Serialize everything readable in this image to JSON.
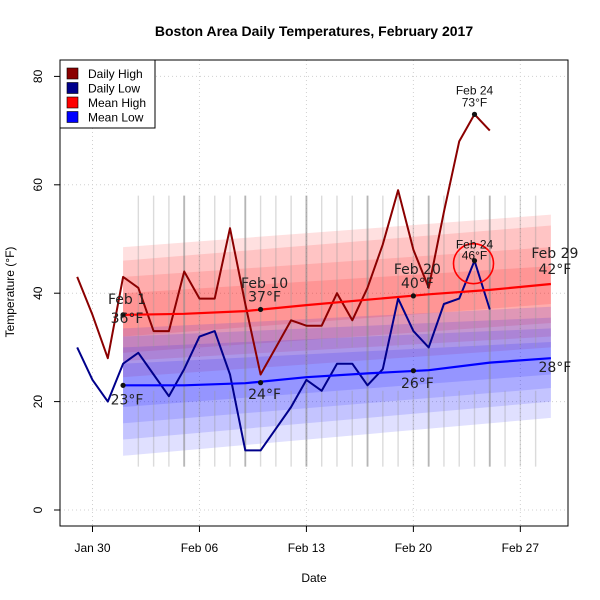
{
  "chart_data": {
    "type": "line",
    "title": "Boston Area Daily Temperatures, February 2017",
    "xlabel": "Date",
    "ylabel": "Temperature (°F)",
    "ylim": [
      0,
      80
    ],
    "xlim": [
      "2017-01-28",
      "2017-03-01"
    ],
    "x_ticks": [
      {
        "date": "2017-01-30",
        "label": "Jan 30"
      },
      {
        "date": "2017-02-06",
        "label": "Feb 06"
      },
      {
        "date": "2017-02-13",
        "label": "Feb 13"
      },
      {
        "date": "2017-02-20",
        "label": "Feb 20"
      },
      {
        "date": "2017-02-27",
        "label": "Feb 27"
      }
    ],
    "y_ticks": [
      0,
      20,
      40,
      60,
      80
    ],
    "grid": true,
    "legend_position": "top-left",
    "legend": [
      {
        "label": "Daily High",
        "color": "#8b0000"
      },
      {
        "label": "Daily Low",
        "color": "#00008b"
      },
      {
        "label": "Mean High",
        "color": "#ff0000"
      },
      {
        "label": "Mean Low",
        "color": "#0000ff"
      }
    ],
    "series": [
      {
        "name": "Daily High",
        "color": "#8b0000",
        "points": [
          [
            "2017-01-29",
            43
          ],
          [
            "2017-01-30",
            36
          ],
          [
            "2017-01-31",
            28
          ],
          [
            "2017-02-01",
            43
          ],
          [
            "2017-02-02",
            41
          ],
          [
            "2017-02-03",
            33
          ],
          [
            "2017-02-04",
            33
          ],
          [
            "2017-02-05",
            44
          ],
          [
            "2017-02-06",
            39
          ],
          [
            "2017-02-07",
            39
          ],
          [
            "2017-02-08",
            52
          ],
          [
            "2017-02-09",
            38
          ],
          [
            "2017-02-10",
            25
          ],
          [
            "2017-02-11",
            30
          ],
          [
            "2017-02-12",
            35
          ],
          [
            "2017-02-13",
            34
          ],
          [
            "2017-02-14",
            34
          ],
          [
            "2017-02-15",
            40
          ],
          [
            "2017-02-16",
            35
          ],
          [
            "2017-02-17",
            41
          ],
          [
            "2017-02-18",
            49
          ],
          [
            "2017-02-19",
            59
          ],
          [
            "2017-02-20",
            48
          ],
          [
            "2017-02-21",
            41
          ],
          [
            "2017-02-22",
            55
          ],
          [
            "2017-02-23",
            68
          ],
          [
            "2017-02-24",
            73
          ],
          [
            "2017-02-25",
            70
          ]
        ]
      },
      {
        "name": "Daily Low",
        "color": "#00008b",
        "points": [
          [
            "2017-01-29",
            30
          ],
          [
            "2017-01-30",
            24
          ],
          [
            "2017-01-31",
            20
          ],
          [
            "2017-02-01",
            27
          ],
          [
            "2017-02-02",
            29
          ],
          [
            "2017-02-03",
            25
          ],
          [
            "2017-02-04",
            21
          ],
          [
            "2017-02-05",
            26
          ],
          [
            "2017-02-06",
            32
          ],
          [
            "2017-02-07",
            33
          ],
          [
            "2017-02-08",
            25
          ],
          [
            "2017-02-09",
            11
          ],
          [
            "2017-02-10",
            11
          ],
          [
            "2017-02-11",
            15
          ],
          [
            "2017-02-12",
            19
          ],
          [
            "2017-02-13",
            24
          ],
          [
            "2017-02-14",
            22
          ],
          [
            "2017-02-15",
            27
          ],
          [
            "2017-02-16",
            27
          ],
          [
            "2017-02-17",
            23
          ],
          [
            "2017-02-18",
            26
          ],
          [
            "2017-02-19",
            39
          ],
          [
            "2017-02-20",
            33
          ],
          [
            "2017-02-21",
            30
          ],
          [
            "2017-02-22",
            38
          ],
          [
            "2017-02-23",
            39
          ],
          [
            "2017-02-24",
            46
          ],
          [
            "2017-02-25",
            37
          ]
        ]
      },
      {
        "name": "Mean High",
        "color": "#ff0000",
        "points": [
          [
            "2017-02-01",
            36
          ],
          [
            "2017-02-05",
            36.2
          ],
          [
            "2017-02-09",
            36.7
          ],
          [
            "2017-02-13",
            37.8
          ],
          [
            "2017-02-17",
            38.8
          ],
          [
            "2017-02-21",
            39.8
          ],
          [
            "2017-02-25",
            40.6
          ],
          [
            "2017-02-29",
            41.7
          ]
        ]
      },
      {
        "name": "Mean Low",
        "color": "#0000ff",
        "points": [
          [
            "2017-02-01",
            23
          ],
          [
            "2017-02-05",
            23
          ],
          [
            "2017-02-09",
            23.4
          ],
          [
            "2017-02-13",
            24.5
          ],
          [
            "2017-02-17",
            25.2
          ],
          [
            "2017-02-21",
            25.8
          ],
          [
            "2017-02-25",
            27.2
          ],
          [
            "2017-02-29",
            28
          ]
        ]
      }
    ],
    "bands": [
      {
        "name": "Mean High",
        "color": "#ff0000",
        "layers": [
          {
            "start": [
              48.5,
              24.5
            ],
            "end": [
              54.5,
              30
            ]
          },
          {
            "start": [
              46,
              27.5
            ],
            "end": [
              52.5,
              32
            ]
          },
          {
            "start": [
              43,
              29
            ],
            "end": [
              48.5,
              34.5
            ]
          },
          {
            "start": [
              40,
              32
            ],
            "end": [
              45,
              38
            ]
          }
        ]
      },
      {
        "name": "Mean Low",
        "color": "#0000ff",
        "layers": [
          {
            "start": [
              33.5,
              10
            ],
            "end": [
              37.5,
              17
            ]
          },
          {
            "start": [
              32,
              13
            ],
            "end": [
              35.5,
              20
            ]
          },
          {
            "start": [
              30,
              16
            ],
            "end": [
              33.5,
              22.5
            ]
          },
          {
            "start": [
              27,
              19
            ],
            "end": [
              31,
              25
            ]
          }
        ]
      }
    ],
    "annotations": [
      {
        "date": "2017-02-01",
        "label": "Feb 1",
        "value_text": "36°F",
        "y": 36,
        "label_y": 38,
        "value_y": 34.5
      },
      {
        "date": "2017-02-01",
        "label": "",
        "value_text": "23°F",
        "y": 23,
        "label_y": null,
        "value_y": 19.5
      },
      {
        "date": "2017-02-10",
        "label": "Feb 10",
        "value_text": "37°F",
        "y": 37,
        "label_y": 41,
        "value_y": 38.5
      },
      {
        "date": "2017-02-10",
        "label": "",
        "value_text": "24°F",
        "y": 23.5,
        "label_y": null,
        "value_y": 20.5
      },
      {
        "date": "2017-02-20",
        "label": "Feb 20",
        "value_text": "40°F",
        "y": 39.5,
        "label_y": 43.5,
        "value_y": 41
      },
      {
        "date": "2017-02-20",
        "label": "",
        "value_text": "26°F",
        "y": 25.7,
        "label_y": null,
        "value_y": 22.5
      },
      {
        "date": "2017-02-29",
        "label": "Feb 29",
        "value_text": "42°F",
        "y": null,
        "label_y": 46.5,
        "value_y": 43.5
      },
      {
        "date": "2017-02-29",
        "label": "",
        "value_text": "28°F",
        "y": null,
        "label_y": null,
        "value_y": 25.5
      }
    ],
    "record_callouts": [
      {
        "date": "2017-02-24",
        "label": "Feb 24",
        "value_text": "73°F",
        "y": 73,
        "circled": false
      },
      {
        "date": "2017-02-24",
        "label": "Feb 24",
        "value_text": "46°F",
        "y": 46,
        "circled": true
      }
    ]
  }
}
